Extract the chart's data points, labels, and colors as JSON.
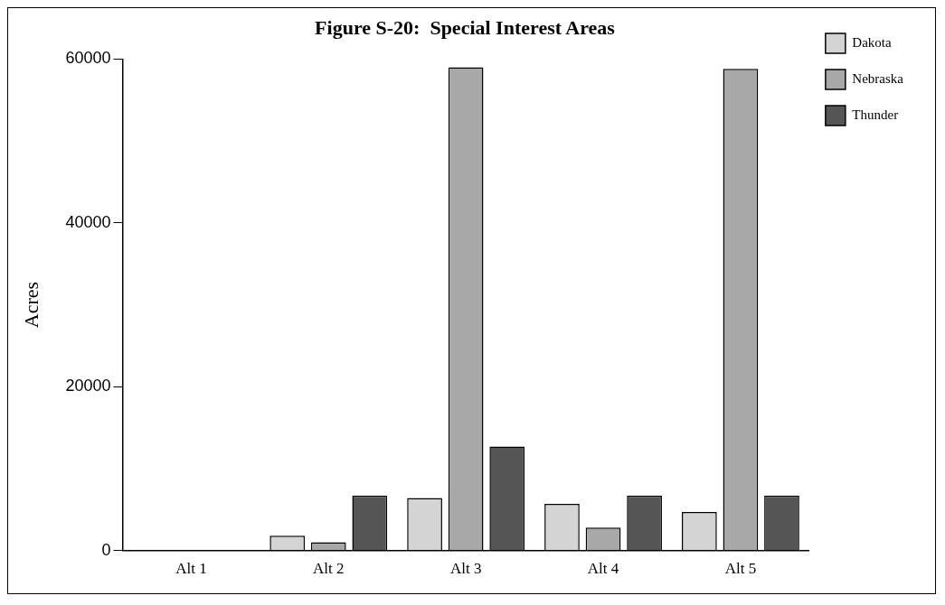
{
  "chart_data": {
    "type": "bar",
    "title": "Figure S-20:  Special Interest Areas",
    "ylabel": "Acres",
    "categories": [
      "Alt 1",
      "Alt 2",
      "Alt 3",
      "Alt 4",
      "Alt 5"
    ],
    "series": [
      {
        "name": "Dakota",
        "color": "#d4d4d4",
        "values": [
          0,
          1800,
          6400,
          5700,
          4700
        ]
      },
      {
        "name": "Nebraska",
        "color": "#a8a8a8",
        "values": [
          0,
          1000,
          59000,
          2800,
          58800
        ]
      },
      {
        "name": "Thunder",
        "color": "#555555",
        "values": [
          0,
          6700,
          12700,
          6700,
          6700
        ]
      }
    ],
    "ylim": [
      0,
      60000
    ],
    "yticks": [
      0,
      20000,
      40000,
      60000
    ],
    "grid": false,
    "legend": "right"
  }
}
